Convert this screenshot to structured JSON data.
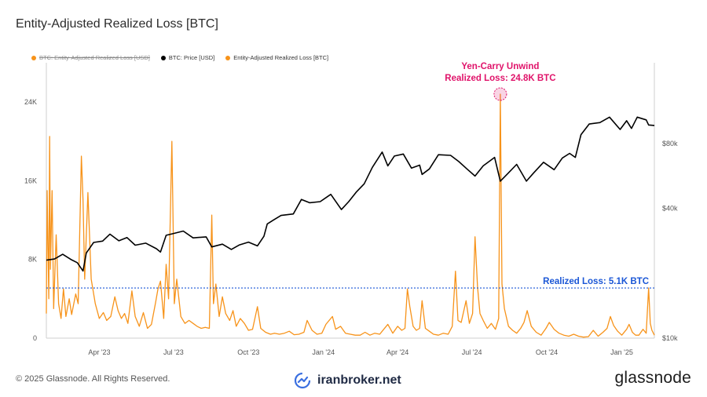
{
  "title": "Entity-Adjusted Realized Loss [BTC]",
  "legend": [
    {
      "label": "BTC: Entity-Adjusted Realized Loss [USD]",
      "color": "#f7931a",
      "hidden": true
    },
    {
      "label": "BTC: Price [USD]",
      "color": "#000000",
      "hidden": false
    },
    {
      "label": "Entity-Adjusted Realized Loss [BTC]",
      "color": "#f7931a",
      "hidden": false
    }
  ],
  "footer": {
    "copyright": "© 2025 Glassnode. All Rights Reserved.",
    "brand": "glassnode",
    "watermark": "iranbroker.net"
  },
  "annotations": {
    "spike_title": "Yen-Carry Unwind",
    "spike_value": "Realized Loss: 24.8K BTC",
    "threshold_label": "Realized Loss: 5.1K BTC"
  },
  "chart_data": {
    "type": "line",
    "title": "Entity-Adjusted Realized Loss [BTC]",
    "x_range": [
      "2023-01-26",
      "2025-02-10"
    ],
    "x_ticks": [
      "Apr '23",
      "Jul '23",
      "Oct '23",
      "Jan '24",
      "Apr '24",
      "Jul '24",
      "Oct '24",
      "Jan '25"
    ],
    "y_left": {
      "ticks": [
        "0",
        "8K",
        "16K",
        "24K"
      ],
      "range": [
        0,
        24000
      ]
    },
    "y_right": {
      "ticks": [
        "$10k",
        "$40k",
        "$80k"
      ],
      "scale": "log",
      "range": [
        10000,
        130000
      ]
    },
    "grid": false,
    "legend_position": "top-left",
    "threshold": {
      "value": 5100,
      "style": "dotted",
      "color": "#1a56d6"
    },
    "highlight": {
      "date": "2024-08-05",
      "value": 24800,
      "color": "#e0136a"
    },
    "series": [
      {
        "name": "BTC: Price [USD]",
        "axis": "right",
        "color": "#000000",
        "points": [
          [
            "2023-01-26",
            23000
          ],
          [
            "2023-02-05",
            23300
          ],
          [
            "2023-02-15",
            24500
          ],
          [
            "2023-02-25",
            23200
          ],
          [
            "2023-03-05",
            22400
          ],
          [
            "2023-03-12",
            20500
          ],
          [
            "2023-03-16",
            24800
          ],
          [
            "2023-03-25",
            27800
          ],
          [
            "2023-04-05",
            28200
          ],
          [
            "2023-04-14",
            30400
          ],
          [
            "2023-04-25",
            28300
          ],
          [
            "2023-05-05",
            29300
          ],
          [
            "2023-05-15",
            27000
          ],
          [
            "2023-05-28",
            27600
          ],
          [
            "2023-06-10",
            26000
          ],
          [
            "2023-06-15",
            25100
          ],
          [
            "2023-06-22",
            30000
          ],
          [
            "2023-07-01",
            30600
          ],
          [
            "2023-07-13",
            31400
          ],
          [
            "2023-07-25",
            29200
          ],
          [
            "2023-08-10",
            29500
          ],
          [
            "2023-08-17",
            26500
          ],
          [
            "2023-08-30",
            27300
          ],
          [
            "2023-09-10",
            25800
          ],
          [
            "2023-09-20",
            27100
          ],
          [
            "2023-10-01",
            27900
          ],
          [
            "2023-10-12",
            26800
          ],
          [
            "2023-10-20",
            29700
          ],
          [
            "2023-10-24",
            33900
          ],
          [
            "2023-11-01",
            35400
          ],
          [
            "2023-11-10",
            37100
          ],
          [
            "2023-11-25",
            37700
          ],
          [
            "2023-12-05",
            44000
          ],
          [
            "2023-12-15",
            42500
          ],
          [
            "2023-12-28",
            43000
          ],
          [
            "2024-01-10",
            46500
          ],
          [
            "2024-01-23",
            39500
          ],
          [
            "2024-02-01",
            43000
          ],
          [
            "2024-02-10",
            47500
          ],
          [
            "2024-02-20",
            52000
          ],
          [
            "2024-03-01",
            62000
          ],
          [
            "2024-03-13",
            73000
          ],
          [
            "2024-03-20",
            63000
          ],
          [
            "2024-03-28",
            70000
          ],
          [
            "2024-04-08",
            71500
          ],
          [
            "2024-04-18",
            61500
          ],
          [
            "2024-04-28",
            63500
          ],
          [
            "2024-05-01",
            57500
          ],
          [
            "2024-05-10",
            61000
          ],
          [
            "2024-05-21",
            71000
          ],
          [
            "2024-06-05",
            70500
          ],
          [
            "2024-06-15",
            66000
          ],
          [
            "2024-06-25",
            61000
          ],
          [
            "2024-07-05",
            56500
          ],
          [
            "2024-07-15",
            63000
          ],
          [
            "2024-07-29",
            69000
          ],
          [
            "2024-08-05",
            53500
          ],
          [
            "2024-08-15",
            58500
          ],
          [
            "2024-08-25",
            64000
          ],
          [
            "2024-09-06",
            53500
          ],
          [
            "2024-09-15",
            58500
          ],
          [
            "2024-09-27",
            65500
          ],
          [
            "2024-10-10",
            60500
          ],
          [
            "2024-10-20",
            68500
          ],
          [
            "2024-10-29",
            72000
          ],
          [
            "2024-11-05",
            69000
          ],
          [
            "2024-11-12",
            88000
          ],
          [
            "2024-11-22",
            98500
          ],
          [
            "2024-12-05",
            100000
          ],
          [
            "2024-12-17",
            106000
          ],
          [
            "2024-12-30",
            93000
          ],
          [
            "2025-01-07",
            102000
          ],
          [
            "2025-01-13",
            94000
          ],
          [
            "2025-01-20",
            106000
          ],
          [
            "2025-01-31",
            103000
          ],
          [
            "2025-02-03",
            97500
          ],
          [
            "2025-02-10",
            97000
          ]
        ]
      },
      {
        "name": "Entity-Adjusted Realized Loss [BTC]",
        "axis": "left",
        "color": "#f7931a",
        "points": [
          [
            "2023-01-26",
            2500
          ],
          [
            "2023-01-27",
            15000
          ],
          [
            "2023-01-29",
            4000
          ],
          [
            "2023-01-30",
            20500
          ],
          [
            "2023-01-31",
            7000
          ],
          [
            "2023-02-02",
            15000
          ],
          [
            "2023-02-04",
            3000
          ],
          [
            "2023-02-07",
            10500
          ],
          [
            "2023-02-10",
            3500
          ],
          [
            "2023-02-13",
            2000
          ],
          [
            "2023-02-16",
            5000
          ],
          [
            "2023-02-19",
            2200
          ],
          [
            "2023-02-23",
            4000
          ],
          [
            "2023-02-26",
            2400
          ],
          [
            "2023-03-03",
            4500
          ],
          [
            "2023-03-06",
            3500
          ],
          [
            "2023-03-10",
            18500
          ],
          [
            "2023-03-12",
            14000
          ],
          [
            "2023-03-14",
            6000
          ],
          [
            "2023-03-18",
            14800
          ],
          [
            "2023-03-22",
            6000
          ],
          [
            "2023-03-27",
            3500
          ],
          [
            "2023-04-01",
            2000
          ],
          [
            "2023-04-06",
            2600
          ],
          [
            "2023-04-10",
            1800
          ],
          [
            "2023-04-15",
            2200
          ],
          [
            "2023-04-20",
            4200
          ],
          [
            "2023-04-24",
            2800
          ],
          [
            "2023-04-28",
            2000
          ],
          [
            "2023-05-02",
            2500
          ],
          [
            "2023-05-06",
            1500
          ],
          [
            "2023-05-11",
            4800
          ],
          [
            "2023-05-15",
            2200
          ],
          [
            "2023-05-20",
            1200
          ],
          [
            "2023-05-25",
            2600
          ],
          [
            "2023-05-30",
            1000
          ],
          [
            "2023-06-04",
            1400
          ],
          [
            "2023-06-09",
            3600
          ],
          [
            "2023-06-12",
            5000
          ],
          [
            "2023-06-15",
            5800
          ],
          [
            "2023-06-19",
            2000
          ],
          [
            "2023-06-22",
            7500
          ],
          [
            "2023-06-25",
            4000
          ],
          [
            "2023-06-29",
            20000
          ],
          [
            "2023-07-02",
            3500
          ],
          [
            "2023-07-05",
            6000
          ],
          [
            "2023-07-10",
            2200
          ],
          [
            "2023-07-15",
            1500
          ],
          [
            "2023-07-20",
            1800
          ],
          [
            "2023-07-25",
            1500
          ],
          [
            "2023-07-30",
            1200
          ],
          [
            "2023-08-04",
            1000
          ],
          [
            "2023-08-09",
            1100
          ],
          [
            "2023-08-14",
            1000
          ],
          [
            "2023-08-17",
            12500
          ],
          [
            "2023-08-19",
            3500
          ],
          [
            "2023-08-22",
            5500
          ],
          [
            "2023-08-26",
            2200
          ],
          [
            "2023-08-30",
            4200
          ],
          [
            "2023-09-03",
            2500
          ],
          [
            "2023-09-08",
            1800
          ],
          [
            "2023-09-12",
            2800
          ],
          [
            "2023-09-16",
            1200
          ],
          [
            "2023-09-21",
            2000
          ],
          [
            "2023-09-26",
            1500
          ],
          [
            "2023-10-01",
            800
          ],
          [
            "2023-10-06",
            900
          ],
          [
            "2023-10-12",
            3200
          ],
          [
            "2023-10-16",
            1000
          ],
          [
            "2023-10-22",
            600
          ],
          [
            "2023-10-28",
            400
          ],
          [
            "2023-11-02",
            500
          ],
          [
            "2023-11-08",
            400
          ],
          [
            "2023-11-14",
            500
          ],
          [
            "2023-11-20",
            700
          ],
          [
            "2023-11-26",
            350
          ],
          [
            "2023-12-02",
            400
          ],
          [
            "2023-12-08",
            600
          ],
          [
            "2023-12-12",
            1800
          ],
          [
            "2023-12-18",
            800
          ],
          [
            "2023-12-24",
            400
          ],
          [
            "2023-12-30",
            500
          ],
          [
            "2024-01-04",
            1400
          ],
          [
            "2024-01-08",
            1800
          ],
          [
            "2024-01-12",
            2200
          ],
          [
            "2024-01-16",
            900
          ],
          [
            "2024-01-22",
            1200
          ],
          [
            "2024-01-28",
            500
          ],
          [
            "2024-02-03",
            400
          ],
          [
            "2024-02-09",
            300
          ],
          [
            "2024-02-15",
            300
          ],
          [
            "2024-02-21",
            600
          ],
          [
            "2024-02-27",
            300
          ],
          [
            "2024-03-04",
            500
          ],
          [
            "2024-03-10",
            400
          ],
          [
            "2024-03-15",
            900
          ],
          [
            "2024-03-20",
            1400
          ],
          [
            "2024-03-26",
            500
          ],
          [
            "2024-04-01",
            1200
          ],
          [
            "2024-04-06",
            800
          ],
          [
            "2024-04-10",
            1000
          ],
          [
            "2024-04-13",
            5000
          ],
          [
            "2024-04-16",
            3200
          ],
          [
            "2024-04-20",
            1200
          ],
          [
            "2024-04-24",
            800
          ],
          [
            "2024-04-28",
            1000
          ],
          [
            "2024-05-01",
            3800
          ],
          [
            "2024-05-05",
            1000
          ],
          [
            "2024-05-10",
            700
          ],
          [
            "2024-05-15",
            400
          ],
          [
            "2024-05-21",
            300
          ],
          [
            "2024-05-27",
            500
          ],
          [
            "2024-06-02",
            400
          ],
          [
            "2024-06-07",
            1200
          ],
          [
            "2024-06-11",
            6800
          ],
          [
            "2024-06-14",
            1800
          ],
          [
            "2024-06-18",
            1600
          ],
          [
            "2024-06-24",
            3800
          ],
          [
            "2024-06-28",
            1500
          ],
          [
            "2024-07-02",
            2500
          ],
          [
            "2024-07-05",
            10300
          ],
          [
            "2024-07-08",
            5200
          ],
          [
            "2024-07-11",
            2500
          ],
          [
            "2024-07-15",
            1800
          ],
          [
            "2024-07-20",
            1000
          ],
          [
            "2024-07-25",
            1500
          ],
          [
            "2024-07-30",
            900
          ],
          [
            "2024-08-03",
            2000
          ],
          [
            "2024-08-05",
            24800
          ],
          [
            "2024-08-07",
            5500
          ],
          [
            "2024-08-10",
            3000
          ],
          [
            "2024-08-15",
            1200
          ],
          [
            "2024-08-20",
            800
          ],
          [
            "2024-08-25",
            500
          ],
          [
            "2024-08-30",
            1000
          ],
          [
            "2024-09-03",
            1600
          ],
          [
            "2024-09-07",
            2800
          ],
          [
            "2024-09-12",
            1200
          ],
          [
            "2024-09-18",
            600
          ],
          [
            "2024-09-24",
            300
          ],
          [
            "2024-09-30",
            1000
          ],
          [
            "2024-10-04",
            1600
          ],
          [
            "2024-10-10",
            900
          ],
          [
            "2024-10-16",
            500
          ],
          [
            "2024-10-22",
            300
          ],
          [
            "2024-10-28",
            200
          ],
          [
            "2024-11-03",
            400
          ],
          [
            "2024-11-09",
            200
          ],
          [
            "2024-11-15",
            100
          ],
          [
            "2024-11-21",
            150
          ],
          [
            "2024-11-27",
            800
          ],
          [
            "2024-12-03",
            200
          ],
          [
            "2024-12-09",
            600
          ],
          [
            "2024-12-14",
            1000
          ],
          [
            "2024-12-18",
            2200
          ],
          [
            "2024-12-22",
            1300
          ],
          [
            "2024-12-27",
            700
          ],
          [
            "2025-01-01",
            300
          ],
          [
            "2025-01-07",
            900
          ],
          [
            "2025-01-10",
            1400
          ],
          [
            "2025-01-14",
            600
          ],
          [
            "2025-01-18",
            300
          ],
          [
            "2025-01-22",
            300
          ],
          [
            "2025-01-27",
            900
          ],
          [
            "2025-01-31",
            500
          ],
          [
            "2025-02-03",
            5100
          ],
          [
            "2025-02-05",
            1500
          ],
          [
            "2025-02-07",
            800
          ],
          [
            "2025-02-10",
            300
          ]
        ]
      }
    ]
  }
}
